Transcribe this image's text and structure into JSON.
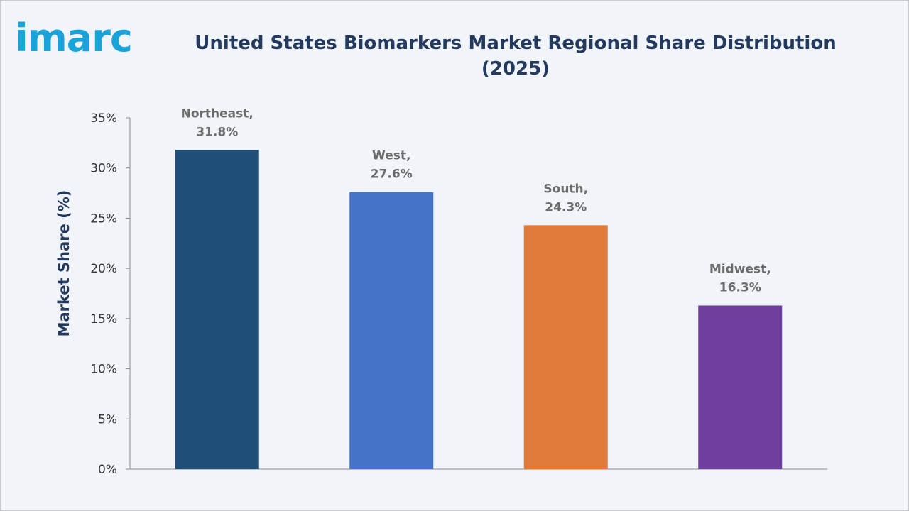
{
  "brand": {
    "logo_text": "imarc"
  },
  "chart_data": {
    "type": "bar",
    "title_line1": "United States Biomarkers Market Regional Share Distribution",
    "title_line2": "(2025)",
    "ylabel": "Market Share (%)",
    "xlabel": "",
    "categories": [
      "Northeast",
      "West",
      "South",
      "Midwest"
    ],
    "values": [
      31.8,
      27.6,
      24.3,
      16.3
    ],
    "data_labels": [
      [
        "Northeast,",
        "31.8%"
      ],
      [
        "West,",
        "27.6%"
      ],
      [
        "South,",
        "24.3%"
      ],
      [
        "Midwest,",
        "16.3%"
      ]
    ],
    "colors": [
      "#1f4e79",
      "#4472c4",
      "#e07a3a",
      "#6f3fa0"
    ],
    "ylim": [
      0,
      35
    ],
    "yticks": [
      0,
      5,
      10,
      15,
      20,
      25,
      30,
      35
    ],
    "ytick_labels": [
      "0%",
      "5%",
      "10%",
      "15%",
      "20%",
      "25%",
      "30%",
      "35%"
    ],
    "grid": false,
    "legend": "none"
  }
}
